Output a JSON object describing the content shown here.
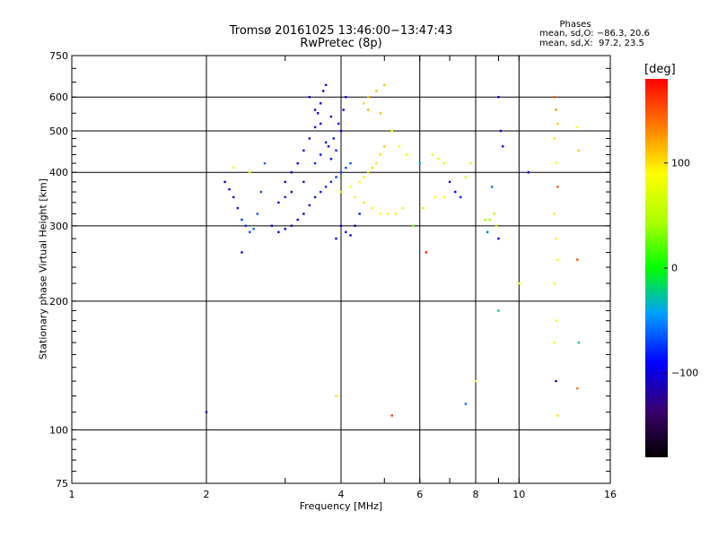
{
  "header": {
    "title": "Tromsø 20161025 13:46:00−13:47:43",
    "subtitle": "RwPretec (8p)",
    "stats_title": "Phases",
    "stats_o": "mean, sd,O: −86.3, 20.6",
    "stats_x": "mean, sd,X:  97.2, 23.5"
  },
  "colorbar": {
    "label": "[deg]",
    "range": [
      -180,
      180
    ],
    "ticks": [
      {
        "value": 100,
        "label": "100"
      },
      {
        "value": 0,
        "label": "0"
      },
      {
        "value": -100,
        "label": "−100"
      }
    ]
  },
  "chart_data": {
    "type": "scatter",
    "title": "Tromsø 20161025 13:46:00−13:47:43",
    "subtitle": "RwPretec (8p)",
    "xlabel": "Frequency [MHz]",
    "ylabel": "Stationary phase Virtual Height [km]",
    "x_scale": "log",
    "y_scale": "log",
    "xlim": [
      1,
      16
    ],
    "ylim": [
      75,
      750
    ],
    "x_ticks": [
      {
        "value": 1,
        "label": "1"
      },
      {
        "value": 2,
        "label": "2"
      },
      {
        "value": 4,
        "label": "4"
      },
      {
        "value": 6,
        "label": "6"
      },
      {
        "value": 8,
        "label": "8"
      },
      {
        "value": 10,
        "label": "10"
      },
      {
        "value": 16,
        "label": "16"
      }
    ],
    "y_ticks": [
      {
        "value": 75,
        "label": "75"
      },
      {
        "value": 100,
        "label": "100"
      },
      {
        "value": 200,
        "label": "200"
      },
      {
        "value": 300,
        "label": "300"
      },
      {
        "value": 400,
        "label": "400"
      },
      {
        "value": 500,
        "label": "500"
      },
      {
        "value": 600,
        "label": "600"
      },
      {
        "value": 750,
        "label": "750"
      }
    ],
    "x_gridlines": [
      2,
      4,
      6,
      8,
      10
    ],
    "y_gridlines": [
      100,
      200,
      300,
      400,
      500,
      600
    ],
    "grid": true,
    "color_scale": "phase in deg, −180 (black) to +180 (red)",
    "points": [
      [
        2.2,
        380,
        -95
      ],
      [
        2.25,
        365,
        -90
      ],
      [
        2.3,
        350,
        -100
      ],
      [
        2.35,
        330,
        -85
      ],
      [
        2.4,
        310,
        -80
      ],
      [
        2.45,
        300,
        -75
      ],
      [
        2.5,
        290,
        -70
      ],
      [
        2.55,
        295,
        -60
      ],
      [
        2.6,
        320,
        -65
      ],
      [
        2.65,
        360,
        -70
      ],
      [
        2.3,
        410,
        80
      ],
      [
        2.5,
        400,
        90
      ],
      [
        2.7,
        420,
        -60
      ],
      [
        2.4,
        260,
        -110
      ],
      [
        2.0,
        110,
        -120
      ],
      [
        2.8,
        300,
        -100
      ],
      [
        2.9,
        290,
        -95
      ],
      [
        3.0,
        295,
        -95
      ],
      [
        3.1,
        300,
        -100
      ],
      [
        3.2,
        310,
        -100
      ],
      [
        3.3,
        320,
        -95
      ],
      [
        3.4,
        335,
        -90
      ],
      [
        3.5,
        350,
        -85
      ],
      [
        3.6,
        360,
        -85
      ],
      [
        3.7,
        370,
        -80
      ],
      [
        3.8,
        380,
        -80
      ],
      [
        3.9,
        390,
        -75
      ],
      [
        4.0,
        400,
        -70
      ],
      [
        4.1,
        410,
        -70
      ],
      [
        4.2,
        420,
        -65
      ],
      [
        3.0,
        380,
        -100
      ],
      [
        3.1,
        400,
        -95
      ],
      [
        3.2,
        420,
        -95
      ],
      [
        3.3,
        450,
        -90
      ],
      [
        3.4,
        480,
        -95
      ],
      [
        3.5,
        510,
        -100
      ],
      [
        3.55,
        550,
        -95
      ],
      [
        3.6,
        580,
        -100
      ],
      [
        3.65,
        620,
        -105
      ],
      [
        3.7,
        640,
        -100
      ],
      [
        3.4,
        600,
        -100
      ],
      [
        3.5,
        560,
        -95
      ],
      [
        3.6,
        520,
        -90
      ],
      [
        3.7,
        470,
        -95
      ],
      [
        3.8,
        430,
        -90
      ],
      [
        3.9,
        450,
        -85
      ],
      [
        4.0,
        500,
        -90
      ],
      [
        4.05,
        560,
        -95
      ],
      [
        4.1,
        600,
        -90
      ],
      [
        3.8,
        540,
        -100
      ],
      [
        2.9,
        340,
        -90
      ],
      [
        3.0,
        350,
        -85
      ],
      [
        3.1,
        360,
        -90
      ],
      [
        3.3,
        380,
        -85
      ],
      [
        3.5,
        420,
        -80
      ],
      [
        3.6,
        440,
        -85
      ],
      [
        3.75,
        460,
        -90
      ],
      [
        3.85,
        480,
        -85
      ],
      [
        3.95,
        520,
        -85
      ],
      [
        4.0,
        300,
        -95
      ],
      [
        4.1,
        290,
        -100
      ],
      [
        4.2,
        285,
        -95
      ],
      [
        3.9,
        280,
        -100
      ],
      [
        4.3,
        300,
        -90
      ],
      [
        4.4,
        320,
        -85
      ],
      [
        4.0,
        360,
        80
      ],
      [
        4.2,
        370,
        85
      ],
      [
        4.4,
        380,
        90
      ],
      [
        4.5,
        390,
        95
      ],
      [
        4.6,
        400,
        100
      ],
      [
        4.7,
        410,
        105
      ],
      [
        4.8,
        420,
        100
      ],
      [
        4.9,
        440,
        105
      ],
      [
        5.0,
        460,
        110
      ],
      [
        4.3,
        350,
        95
      ],
      [
        4.5,
        340,
        100
      ],
      [
        4.7,
        330,
        95
      ],
      [
        4.9,
        320,
        90
      ],
      [
        5.1,
        320,
        85
      ],
      [
        5.3,
        320,
        80
      ],
      [
        5.5,
        330,
        75
      ],
      [
        4.6,
        600,
        110
      ],
      [
        4.8,
        620,
        115
      ],
      [
        5.0,
        640,
        110
      ],
      [
        4.5,
        580,
        105
      ],
      [
        5.2,
        500,
        90
      ],
      [
        5.4,
        460,
        85
      ],
      [
        5.6,
        440,
        80
      ],
      [
        4.6,
        560,
        120
      ],
      [
        4.9,
        550,
        115
      ],
      [
        6.4,
        440,
        80
      ],
      [
        6.6,
        430,
        75
      ],
      [
        6.8,
        420,
        70
      ],
      [
        6.5,
        350,
        85
      ],
      [
        6.8,
        350,
        90
      ],
      [
        7.2,
        360,
        -90
      ],
      [
        7.4,
        350,
        -85
      ],
      [
        7.0,
        380,
        -95
      ],
      [
        7.6,
        390,
        60
      ],
      [
        7.8,
        420,
        70
      ],
      [
        8.4,
        310,
        40
      ],
      [
        8.6,
        310,
        45
      ],
      [
        8.8,
        320,
        50
      ],
      [
        8.9,
        300,
        45
      ],
      [
        8.5,
        290,
        -60
      ],
      [
        9.0,
        600,
        -100
      ],
      [
        9.1,
        500,
        -90
      ],
      [
        9.2,
        460,
        -95
      ],
      [
        9.0,
        280,
        -90
      ],
      [
        8.7,
        370,
        -60
      ],
      [
        7.6,
        115,
        -60
      ],
      [
        8.0,
        130,
        80
      ],
      [
        9.0,
        190,
        -30
      ],
      [
        10.0,
        220,
        90
      ],
      [
        10.5,
        400,
        -90
      ],
      [
        12.0,
        600,
        150
      ],
      [
        12.1,
        560,
        130
      ],
      [
        12.2,
        520,
        110
      ],
      [
        12.0,
        480,
        100
      ],
      [
        12.1,
        420,
        90
      ],
      [
        12.2,
        370,
        150
      ],
      [
        12.0,
        320,
        100
      ],
      [
        12.1,
        280,
        95
      ],
      [
        12.2,
        250,
        90
      ],
      [
        12.0,
        220,
        85
      ],
      [
        12.1,
        180,
        90
      ],
      [
        12.0,
        160,
        95
      ],
      [
        12.1,
        130,
        -110
      ],
      [
        12.2,
        108,
        100
      ],
      [
        13.5,
        510,
        90
      ],
      [
        13.6,
        450,
        110
      ],
      [
        13.5,
        250,
        155
      ],
      [
        13.6,
        160,
        -20
      ],
      [
        13.5,
        125,
        140
      ],
      [
        5.2,
        108,
        160
      ],
      [
        3.9,
        120,
        100
      ],
      [
        6.0,
        420,
        -40
      ],
      [
        5.8,
        300,
        30
      ],
      [
        6.2,
        260,
        170
      ],
      [
        6.1,
        330,
        60
      ]
    ]
  }
}
